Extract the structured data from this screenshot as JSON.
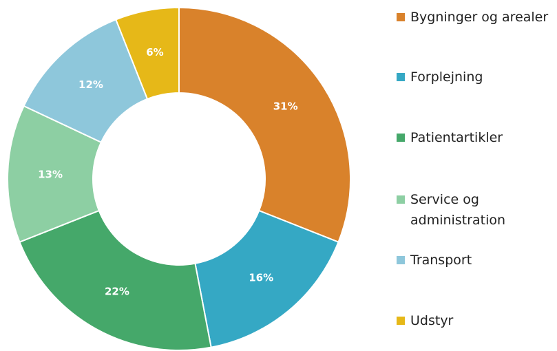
{
  "chart_data": {
    "type": "donut",
    "categories": [
      "Bygninger og arealer",
      "Forplejning",
      "Patientartikler",
      "Service og administration",
      "Transport",
      "Udstyr"
    ],
    "values": [
      31,
      16,
      22,
      13,
      12,
      6
    ],
    "value_labels": [
      "31%",
      "16%",
      "22%",
      "13%",
      "12%",
      "6%"
    ],
    "colors": [
      "#d9822b",
      "#35a8c4",
      "#45a86a",
      "#8dcfa3",
      "#8ec7db",
      "#e6b818"
    ],
    "legend": "right"
  }
}
